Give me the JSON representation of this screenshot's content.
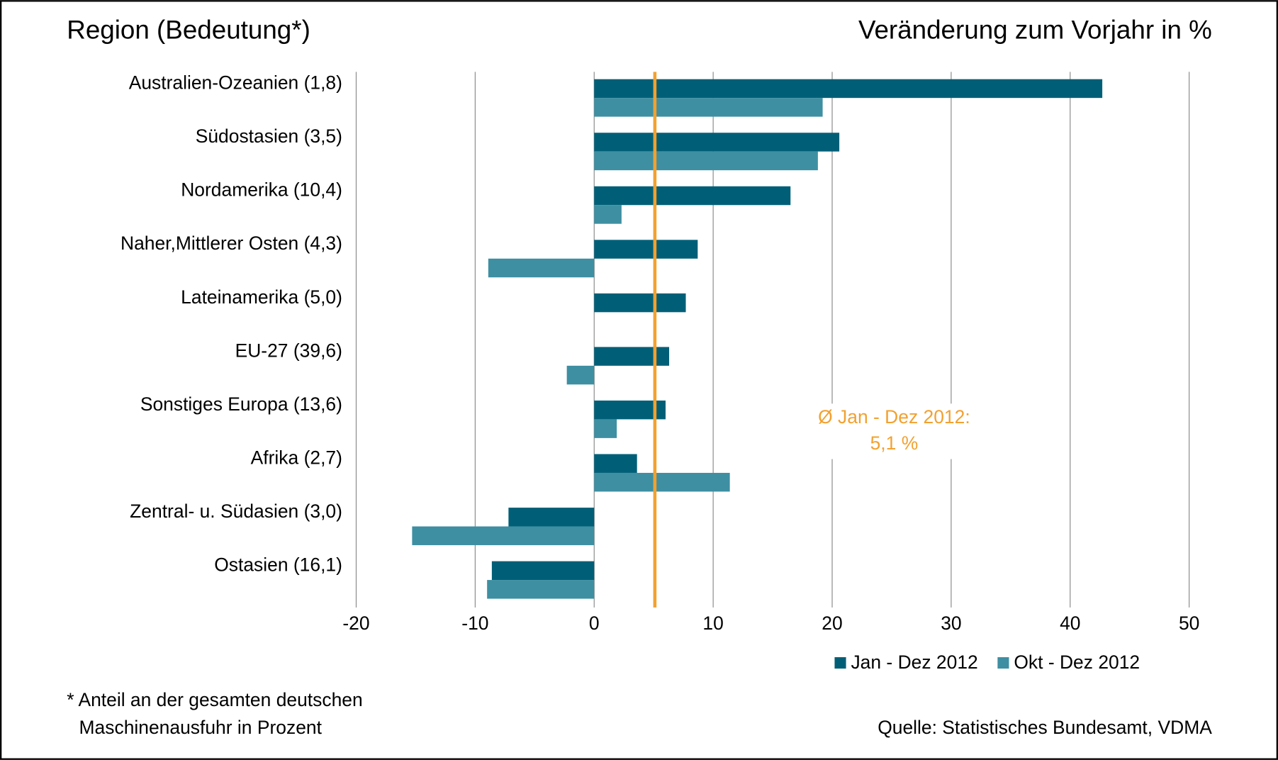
{
  "chart_data": {
    "type": "barh",
    "title": "Region (Bedeutung*)",
    "subtitle": "Veränderung zum Vorjahr in %",
    "categories": [
      "Australien-Ozeanien  (1,8)",
      "Südostasien  (3,5)",
      "Nordamerika  (10,4)",
      "Naher,Mittlerer Osten  (4,3)",
      "Lateinamerika  (5,0)",
      "EU-27  (39,6)",
      "Sonstiges Europa  (13,6)",
      "Afrika  (2,7)",
      "Zentral- u. Südasien  (3,0)",
      "Ostasien  (16,1)"
    ],
    "series": [
      {
        "name": "Jan - Dez 2012",
        "color": "#005f77",
        "values": [
          42.7,
          20.6,
          16.5,
          8.7,
          7.7,
          6.3,
          6.0,
          3.6,
          -7.2,
          -8.6
        ]
      },
      {
        "name": "Okt - Dez 2012",
        "color": "#3e8fa2",
        "values": [
          19.2,
          18.8,
          2.3,
          -8.9,
          0,
          -2.3,
          1.9,
          11.4,
          -15.3,
          -9.0
        ]
      }
    ],
    "xlim": [
      -20,
      50
    ],
    "xticks": [
      -20,
      -10,
      0,
      10,
      20,
      30,
      40,
      50
    ],
    "grid": true,
    "legend": "bottom-right",
    "reference_line": {
      "value": 5.1,
      "color": "#f2a130",
      "label": [
        "Ø Jan - Dez 2012:",
        "5,1 %"
      ]
    },
    "footnote": [
      "* Anteil an der gesamten deutschen",
      "Maschinenausfuhr in Prozent"
    ],
    "source": "Quelle: Statistisches Bundesamt, VDMA"
  }
}
